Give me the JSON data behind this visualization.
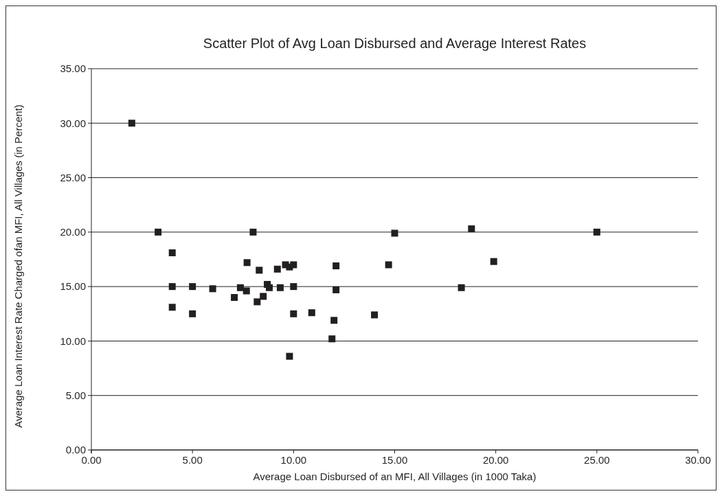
{
  "chart_data": {
    "type": "scatter",
    "title": "Scatter Plot of Avg Loan Disbursed and Average Interest Rates",
    "xlabel": "Average Loan Disbursed of an MFI, All Villages (in 1000 Taka)",
    "ylabel": "Average Loan Interest Rate Charged ofan MFI, All Villages (in Percent)",
    "x": [
      2.0,
      3.3,
      4.0,
      4.0,
      4.0,
      5.0,
      5.0,
      6.0,
      7.07,
      7.37,
      7.67,
      7.7,
      8.0,
      8.2,
      8.3,
      8.5,
      8.7,
      8.8,
      9.2,
      9.34,
      9.6,
      9.8,
      10.0,
      10.0,
      10.0,
      9.8,
      10.9,
      12.0,
      11.9,
      12.1,
      12.1,
      14.0,
      14.7,
      15.0,
      18.3,
      18.8,
      19.9,
      25.0
    ],
    "series": [
      {
        "color": "#231f20",
        "values": [
          30.0,
          20.0,
          18.1,
          15.0,
          13.1,
          15.0,
          12.5,
          14.8,
          14.0,
          14.9,
          14.6,
          17.2,
          20.0,
          13.6,
          16.5,
          14.1,
          15.2,
          14.9,
          16.6,
          14.9,
          17.0,
          16.8,
          17.0,
          15.0,
          12.5,
          8.6,
          12.6,
          11.9,
          10.2,
          16.9,
          14.7,
          12.4,
          17.0,
          19.9,
          14.9,
          20.3,
          17.3,
          20.0
        ]
      }
    ],
    "xlim": [
      0,
      30
    ],
    "xticks": [
      {
        "value": 0,
        "label": "0.00"
      },
      {
        "value": 5,
        "label": "5.00"
      },
      {
        "value": 10,
        "label": "10.00"
      },
      {
        "value": 15,
        "label": "15.00"
      },
      {
        "value": 20,
        "label": "20.00"
      },
      {
        "value": 25,
        "label": "25.00"
      },
      {
        "value": 30,
        "label": "30.00"
      }
    ],
    "ylim": [
      0,
      35
    ],
    "yticks": [
      {
        "value": 0,
        "label": "0.00"
      },
      {
        "value": 5,
        "label": "5.00"
      },
      {
        "value": 10,
        "label": "10.00"
      },
      {
        "value": 15,
        "label": "15.00"
      },
      {
        "value": 20,
        "label": "20.00"
      },
      {
        "value": 25,
        "label": "25.00"
      },
      {
        "value": 30,
        "label": "30.00"
      },
      {
        "value": 35,
        "label": "35.00"
      }
    ],
    "grid": "y",
    "marker": "square"
  }
}
